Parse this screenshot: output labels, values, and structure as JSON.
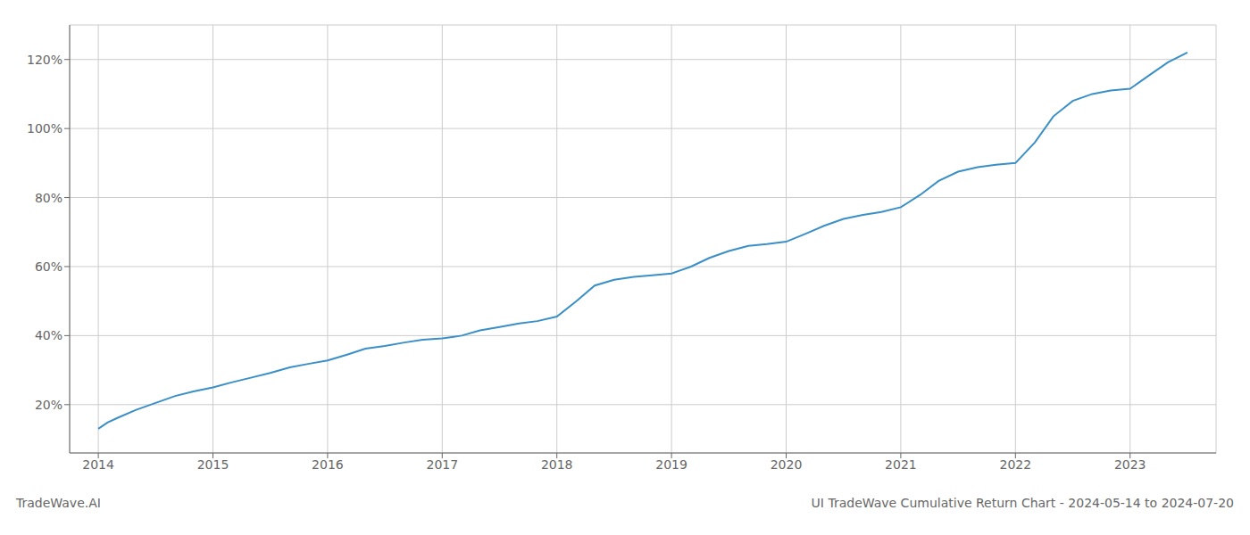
{
  "chart_data": {
    "type": "line",
    "title": "UI TradeWave Cumulative Return Chart - 2024-05-14 to 2024-07-20",
    "annotations": [
      "TradeWave.AI"
    ],
    "color": "#3a8fc7",
    "grid": true,
    "xlim": [
      2013.75,
      2023.75
    ],
    "xticks": [
      2014,
      2015,
      2016,
      2017,
      2018,
      2019,
      2020,
      2021,
      2022,
      2023
    ],
    "ylim": [
      0.06,
      1.3
    ],
    "yticks": [
      {
        "value": 0.2,
        "label": "20%"
      },
      {
        "value": 0.4,
        "label": "40%"
      },
      {
        "value": 0.6,
        "label": "60%"
      },
      {
        "value": 0.8,
        "label": "80%"
      },
      {
        "value": 1.0,
        "label": "100%"
      },
      {
        "value": 1.2,
        "label": "120%"
      }
    ],
    "x": [
      2014.0,
      2014.08,
      2014.17,
      2014.33,
      2014.5,
      2014.67,
      2014.83,
      2015.0,
      2015.17,
      2015.33,
      2015.5,
      2015.67,
      2015.83,
      2016.0,
      2016.17,
      2016.33,
      2016.5,
      2016.67,
      2016.83,
      2017.0,
      2017.17,
      2017.33,
      2017.5,
      2017.67,
      2017.83,
      2018.0,
      2018.17,
      2018.33,
      2018.5,
      2018.67,
      2018.83,
      2019.0,
      2019.17,
      2019.33,
      2019.5,
      2019.67,
      2019.83,
      2020.0,
      2020.17,
      2020.33,
      2020.5,
      2020.67,
      2020.83,
      2021.0,
      2021.17,
      2021.33,
      2021.5,
      2021.67,
      2021.83,
      2022.0,
      2022.17,
      2022.33,
      2022.5,
      2022.67,
      2022.83,
      2023.0,
      2023.17,
      2023.33,
      2023.5
    ],
    "values": [
      0.13,
      0.148,
      0.162,
      0.185,
      0.205,
      0.225,
      0.238,
      0.25,
      0.265,
      0.278,
      0.292,
      0.308,
      0.318,
      0.328,
      0.345,
      0.362,
      0.37,
      0.38,
      0.388,
      0.392,
      0.4,
      0.415,
      0.425,
      0.435,
      0.442,
      0.455,
      0.5,
      0.545,
      0.562,
      0.57,
      0.575,
      0.58,
      0.6,
      0.625,
      0.645,
      0.66,
      0.665,
      0.672,
      0.695,
      0.718,
      0.738,
      0.75,
      0.758,
      0.772,
      0.808,
      0.848,
      0.875,
      0.888,
      0.895,
      0.9,
      0.96,
      1.035,
      1.08,
      1.1,
      1.11,
      1.115,
      1.155,
      1.192,
      1.22
    ]
  }
}
